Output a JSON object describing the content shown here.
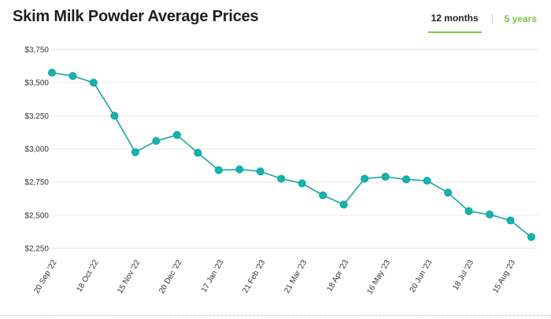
{
  "header": {
    "title": "Skim Milk Powder Average Prices"
  },
  "range_tabs": [
    {
      "label": "12 months",
      "active": true
    },
    {
      "label": "5 years",
      "active": false
    }
  ],
  "colors": {
    "series": "#1aa6a0",
    "marker": "#12b3b0",
    "active_tab_underline": "#7ac943",
    "inactive_tab_text": "#7ac943",
    "grid": "#e6e6e6"
  },
  "chart_data": {
    "type": "line",
    "title": "Skim Milk Powder Average Prices",
    "xlabel": "",
    "ylabel": "",
    "ylim": [
      2250,
      3750
    ],
    "y_ticks": [
      2250,
      2500,
      2750,
      3000,
      3250,
      3500,
      3750
    ],
    "y_tick_labels": [
      "$2,250",
      "$2,500",
      "$2,750",
      "$3,000",
      "$3,250",
      "$3,500",
      "$3,750"
    ],
    "grid": true,
    "x_tick_labels": [
      "20 Sep '22",
      "18 Oct '22",
      "15 Nov '22",
      "20 Dec '22",
      "17 Jan '23",
      "21 Feb '23",
      "21 Mar '23",
      "18 Apr '23",
      "16 May '23",
      "20 Jun '23",
      "18 Jul '23",
      "15 Aug '23"
    ],
    "points": [
      3575,
      3550,
      3500,
      3250,
      2975,
      3060,
      3105,
      2970,
      2840,
      2845,
      2830,
      2775,
      2740,
      2650,
      2580,
      2775,
      2790,
      2770,
      2760,
      2670,
      2530,
      2505,
      2460,
      2335
    ],
    "tick_every": 2
  }
}
